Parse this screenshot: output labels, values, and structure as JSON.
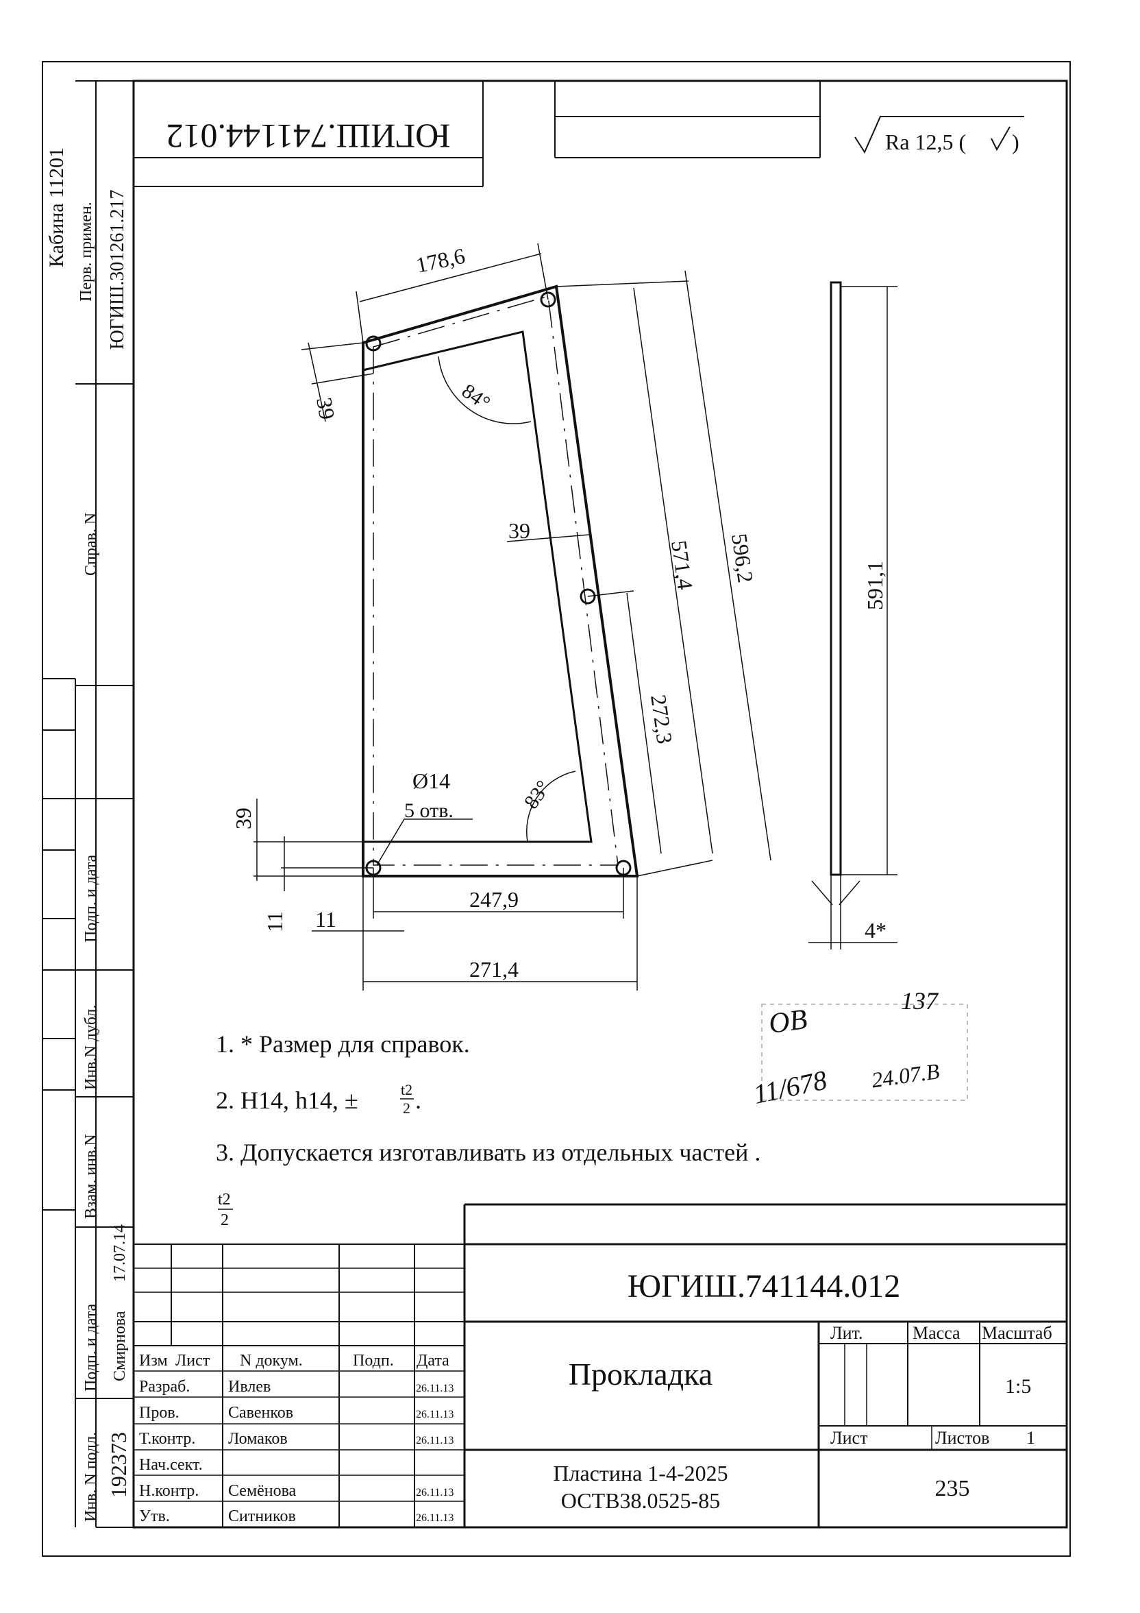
{
  "side_stamp": {
    "cabin": "Кабина 11201",
    "perv_primen_label": "Перв. примен.",
    "perv_primen_value": "ЮГИШ.301261.217",
    "sprav_label": "Справ. N",
    "podp_data_label": "Подп. и дата",
    "inv_dubl_label": "Инв.N дубл.",
    "vzam_inv_label": "Взам. инв.N",
    "podp_data2_label": "Подп. и дата",
    "podp_name": "Смирнова",
    "podp_date": "17.07.14",
    "inv_podl_label": "Инв. N подл.",
    "inv_podl_value": "192373"
  },
  "top_code_mirrored": "ЮГИШ.741144.012",
  "roughness": "Ra 12,5 (",
  "roughness_close": ")",
  "dimensions": {
    "top_width": "178,6",
    "top_offset": "39",
    "angle_top": "84°",
    "inner_width": "39",
    "inner_height": "571,4",
    "outer_height": "596,2",
    "mid_height": "272,3",
    "hole_label": "Ø14",
    "hole_count": "5 отв.",
    "angle_bottom": "83°",
    "left_39": "39",
    "bottom_11_v": "11",
    "bottom_11_h": "11",
    "bottom_inner": "247,9",
    "bottom_outer": "271,4",
    "side_height": "591,1",
    "thickness": "4*"
  },
  "notes": [
    "1. * Размер для справок.",
    "2. H14, h14, ±",
    "3. Допускается изготавливать из отдельных частей ."
  ],
  "note2_fraction": {
    "num": "t2",
    "den": "2",
    "suffix": "."
  },
  "loose_fraction": {
    "num": "t2",
    "den": "2"
  },
  "handwritten": {
    "l1": "ОВ",
    "l2": "137",
    "l3": "11/678",
    "l4": "24.07.В"
  },
  "title_block": {
    "doc_code": "ЮГИШ.741144.012",
    "name": "Прокладка",
    "material_l1": "Пластина 1-4-2025",
    "material_l2": "ОСТВ38.0525-85",
    "lit_label": "Лит.",
    "massa_label": "Масса",
    "scale_label": "Масштаб",
    "scale_value": "1:5",
    "list_label": "Лист",
    "listov_label": "Листов",
    "listov_value": "1",
    "sheet_number": "235",
    "headers": [
      "Изм",
      "Лист",
      "N докум.",
      "Подп.",
      "Дата"
    ],
    "rows": [
      {
        "role": "Разраб.",
        "name": "Ивлев",
        "date": "26.11.13"
      },
      {
        "role": "Пров.",
        "name": "Савенков",
        "date": "26.11.13"
      },
      {
        "role": "Т.контр.",
        "name": "Ломаков",
        "date": "26.11.13"
      },
      {
        "role": "Нач.сект.",
        "name": "",
        "date": ""
      },
      {
        "role": "Н.контр.",
        "name": "Семёнова",
        "date": "26.11.13"
      },
      {
        "role": "Утв.",
        "name": "Ситников",
        "date": "26.11.13"
      }
    ]
  }
}
